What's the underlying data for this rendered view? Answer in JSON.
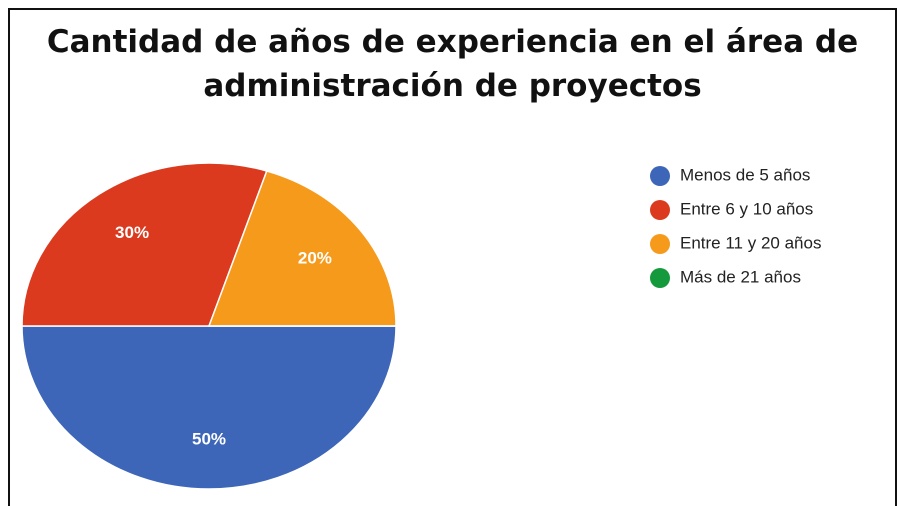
{
  "chart_data": {
    "type": "pie",
    "title": "Cantidad de años de experiencia en el área de administración de proyectos",
    "categories": [
      "Menos de 5 años",
      "Entre 6 y 10 años",
      "Entre 11 y 20 años",
      "Más de 21 años"
    ],
    "values": [
      50,
      30,
      20,
      0
    ],
    "value_labels": [
      "50%",
      "30%",
      "20%",
      null
    ],
    "colors": [
      "#3d66b8",
      "#db3a1f",
      "#f69a1c",
      "#149a3c"
    ],
    "legend": "right"
  }
}
